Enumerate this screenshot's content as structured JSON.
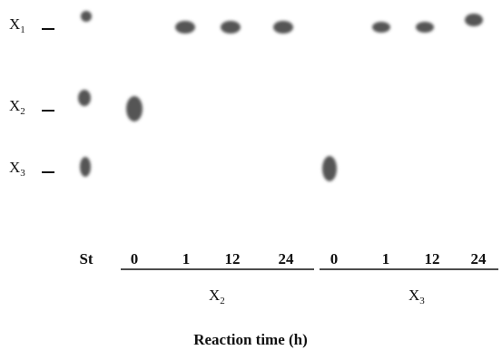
{
  "row_labels": [
    {
      "text": "X",
      "sub": "1"
    },
    {
      "text": "X",
      "sub": "2"
    },
    {
      "text": "X",
      "sub": "3"
    }
  ],
  "lanes": [
    "St",
    "0",
    "1",
    "12",
    "24",
    "0",
    "1",
    "12",
    "24"
  ],
  "groups": [
    {
      "text": "X",
      "sub": "2"
    },
    {
      "text": "X",
      "sub": "3"
    }
  ],
  "axis_title": "Reaction time (h)"
}
